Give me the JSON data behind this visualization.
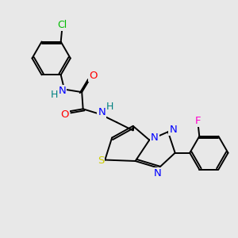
{
  "bg_color": "#e8e8e8",
  "bond_color": "#000000",
  "atom_colors": {
    "N": "#0000ff",
    "O": "#ff0000",
    "S": "#cccc00",
    "Cl": "#00bb00",
    "F": "#ff00cc",
    "C": "#000000",
    "H": "#008080"
  },
  "figsize": [
    3.0,
    3.0
  ],
  "dpi": 100,
  "lw": 1.4,
  "dbl_off": 0.09,
  "fontsize": 9.5
}
